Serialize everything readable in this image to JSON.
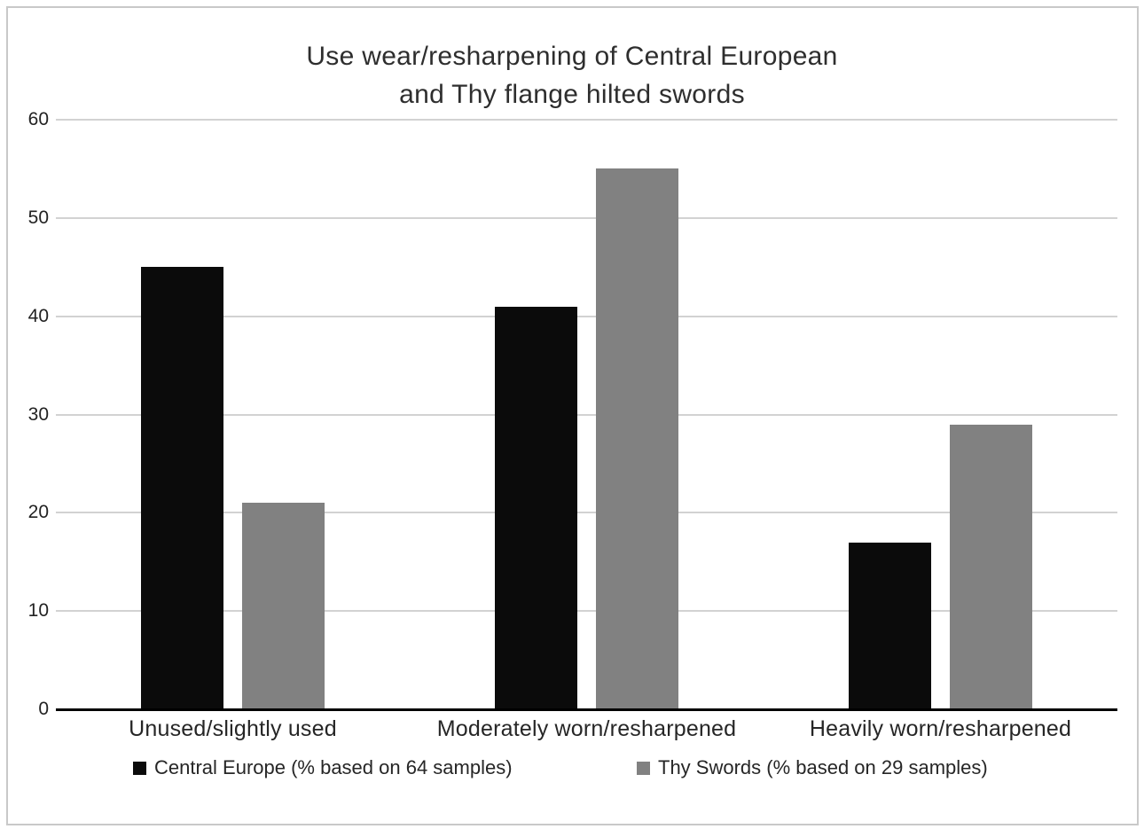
{
  "chart_data": {
    "type": "bar",
    "title": "Use wear/resharpening of Central European and Thy flange hilted swords",
    "title_lines": [
      "Use wear/resharpening of Central European",
      "and Thy flange hilted swords"
    ],
    "categories": [
      "Unused/slightly used",
      "Moderately worn/resharpened",
      "Heavily worn/resharpened"
    ],
    "series": [
      {
        "name": "Central Europe (% based on 64 samples)",
        "color": "#0b0b0b",
        "values": [
          45,
          41,
          17
        ]
      },
      {
        "name": "Thy Swords (% based on 29 samples)",
        "color": "#818181",
        "values": [
          21,
          55,
          29
        ]
      }
    ],
    "xlabel": "",
    "ylabel": "",
    "ylim": [
      0,
      60
    ],
    "yticks": [
      0,
      10,
      20,
      30,
      40,
      50,
      60
    ],
    "grid": true,
    "legend_position": "bottom"
  },
  "colors": {
    "background": "#ffffff",
    "frame_border": "#c9c9c9",
    "gridline": "#d2d2d2",
    "axis": "#000000",
    "title_text": "#2e2e2e",
    "label_text": "#262626",
    "bar_black": "#0b0b0b",
    "bar_gray": "#818181"
  }
}
